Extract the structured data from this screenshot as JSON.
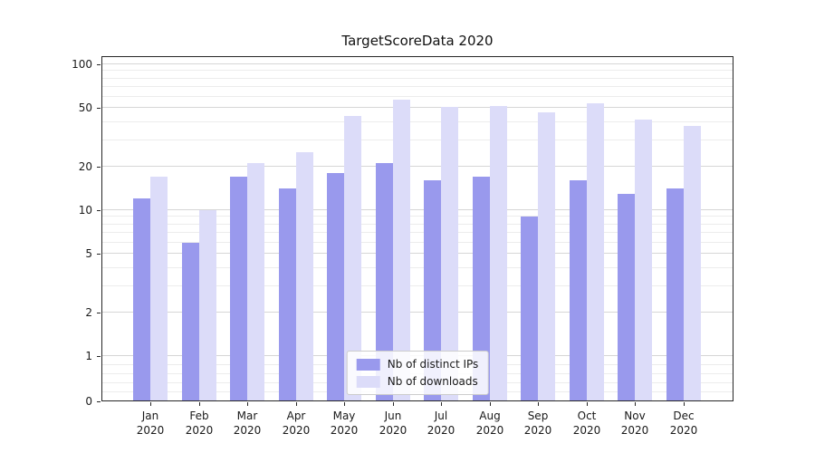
{
  "chart_data": {
    "type": "bar",
    "title": "TargetScoreData 2020",
    "yscale": "symlog",
    "categories": [
      "Jan",
      "Feb",
      "Mar",
      "Apr",
      "May",
      "Jun",
      "Jul",
      "Aug",
      "Sep",
      "Oct",
      "Nov",
      "Dec"
    ],
    "category_year": "2020",
    "series": [
      {
        "name": "Nb of distinct IPs",
        "color": "#9999ed",
        "values": [
          12,
          6,
          17,
          14,
          18,
          21,
          16,
          17,
          9,
          16,
          13,
          14
        ]
      },
      {
        "name": "Nb of downloads",
        "color": "#dcdcf9",
        "values": [
          17,
          10,
          21,
          25,
          44,
          57,
          51,
          52,
          47,
          54,
          42,
          38
        ]
      }
    ],
    "yticks": [
      0,
      1,
      2,
      5,
      10,
      20,
      50,
      100
    ],
    "ylim": [
      0,
      115
    ],
    "xlabel": "",
    "ylabel": "",
    "grid": true,
    "legend_position": "lower center"
  }
}
